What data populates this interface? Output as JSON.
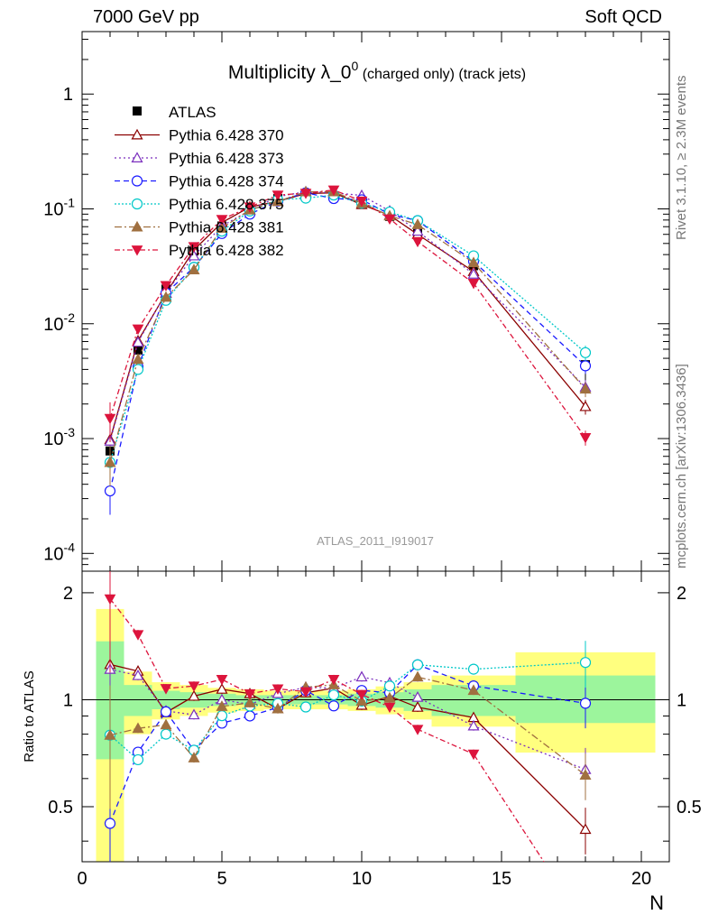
{
  "header": {
    "left": "7000 GeV pp",
    "right": "Soft QCD"
  },
  "side_text": {
    "rivet": "Rivet 3.1.10, ≥ 2.3M events",
    "mcplots": "mcplots.cern.ch [arXiv:1306.3436]"
  },
  "chart_data": {
    "type": "scatter",
    "title": "Multiplicity λ_0",
    "title_superscript": "0",
    "title_suffix": "(charged only) (track jets)",
    "analysis_label": "ATLAS_2011_I919017",
    "xlabel": "N",
    "ylabel_ratio": "Ratio to ATLAS",
    "xlim": [
      0,
      21
    ],
    "ylim_main": [
      7e-05,
      3.5
    ],
    "ylim_ratio": [
      0.35,
      2.3
    ],
    "yscale": "log",
    "x_ticks": [
      0,
      5,
      10,
      15,
      20
    ],
    "x_tick_labels": [
      "0",
      "5",
      "10",
      "15",
      "20"
    ],
    "y_ticks_main": [
      0.0001,
      0.001,
      0.01,
      0.1,
      1
    ],
    "y_tick_labels_main": [
      "10^-4",
      "10^-3",
      "10^-2",
      "10^-1",
      "1"
    ],
    "y_ticks_ratio": [
      0.5,
      1,
      2
    ],
    "y_tick_labels_ratio": [
      "0.5",
      "1",
      "2"
    ],
    "legend_position": "top-left",
    "x": [
      1,
      2,
      3,
      4,
      5,
      6,
      7,
      8,
      9,
      10,
      11,
      12,
      14,
      18
    ],
    "reference": {
      "name": "ATLAS",
      "color": "#000000",
      "values": [
        0.00078,
        0.0059,
        0.02,
        0.043,
        0.071,
        0.1,
        0.123,
        0.13,
        0.128,
        0.113,
        0.086,
        0.063,
        0.032,
        0.0044
      ],
      "band_stat": [
        [
          0.5,
          1.5,
          0.68,
          1.46
        ],
        [
          1.5,
          2.5,
          0.9,
          1.1
        ],
        [
          2.5,
          3.5,
          0.94,
          1.06
        ],
        [
          3.5,
          4.5,
          0.95,
          1.05
        ],
        [
          4.5,
          5.5,
          0.96,
          1.04
        ],
        [
          5.5,
          6.5,
          0.97,
          1.03
        ],
        [
          6.5,
          7.5,
          0.97,
          1.03
        ],
        [
          7.5,
          8.5,
          0.97,
          1.03
        ],
        [
          8.5,
          9.5,
          0.97,
          1.03
        ],
        [
          9.5,
          10.5,
          0.96,
          1.04
        ],
        [
          10.5,
          11.5,
          0.95,
          1.05
        ],
        [
          11.5,
          12.5,
          0.93,
          1.07
        ],
        [
          12.5,
          15.5,
          0.9,
          1.1
        ],
        [
          15.5,
          20.5,
          0.86,
          1.17
        ]
      ],
      "band_total": [
        [
          0.5,
          1.5,
          0.33,
          1.8
        ],
        [
          1.5,
          2.5,
          0.8,
          1.2
        ],
        [
          2.5,
          3.5,
          0.88,
          1.12
        ],
        [
          3.5,
          4.5,
          0.9,
          1.1
        ],
        [
          4.5,
          5.5,
          0.92,
          1.08
        ],
        [
          5.5,
          6.5,
          0.93,
          1.07
        ],
        [
          6.5,
          7.5,
          0.94,
          1.06
        ],
        [
          7.5,
          8.5,
          0.94,
          1.06
        ],
        [
          8.5,
          9.5,
          0.94,
          1.06
        ],
        [
          9.5,
          10.5,
          0.93,
          1.07
        ],
        [
          10.5,
          11.5,
          0.91,
          1.09
        ],
        [
          11.5,
          12.5,
          0.88,
          1.12
        ],
        [
          12.5,
          15.5,
          0.84,
          1.17
        ],
        [
          15.5,
          20.5,
          0.71,
          1.36
        ]
      ]
    },
    "series": [
      {
        "name": "Pythia 6.428 370",
        "color": "#8b0000",
        "marker": "triangle-open",
        "dash": "",
        "values": [
          0.00098,
          0.0071,
          0.0184,
          0.044,
          0.076,
          0.104,
          0.116,
          0.136,
          0.138,
          0.109,
          0.088,
          0.06,
          0.0285,
          0.0019
        ]
      },
      {
        "name": "Pythia 6.428 373",
        "color": "#7b2fbe",
        "marker": "triangle-open",
        "dash": "2,3",
        "values": [
          0.00095,
          0.0069,
          0.0186,
          0.039,
          0.071,
          0.097,
          0.128,
          0.141,
          0.138,
          0.131,
          0.096,
          0.064,
          0.027,
          0.0028
        ]
      },
      {
        "name": "Pythia 6.428 374",
        "color": "#1a1aff",
        "marker": "circle-open",
        "dash": "6,4",
        "values": [
          0.00035,
          0.0042,
          0.0185,
          0.031,
          0.061,
          0.09,
          0.117,
          0.138,
          0.123,
          0.12,
          0.09,
          0.079,
          0.035,
          0.0043
        ]
      },
      {
        "name": "Pythia 6.428 375",
        "color": "#00c8c8",
        "marker": "circle-open",
        "dash": "2,2",
        "values": [
          0.00062,
          0.004,
          0.016,
          0.031,
          0.064,
          0.096,
          0.12,
          0.124,
          0.132,
          0.112,
          0.094,
          0.079,
          0.039,
          0.0056
        ]
      },
      {
        "name": "Pythia 6.428 381",
        "color": "#a07040",
        "marker": "triangle-filled",
        "dash": "8,3,2,3",
        "values": [
          0.00062,
          0.0049,
          0.017,
          0.0295,
          0.068,
          0.098,
          0.116,
          0.141,
          0.141,
          0.112,
          0.087,
          0.073,
          0.034,
          0.0027
        ]
      },
      {
        "name": "Pythia 6.428 382",
        "color": "#dc143c",
        "marker": "triangle-down-filled",
        "dash": "6,3,2,3",
        "values": [
          0.0015,
          0.009,
          0.0215,
          0.047,
          0.081,
          0.104,
          0.132,
          0.137,
          0.146,
          0.117,
          0.082,
          0.052,
          0.0225,
          0.00102
        ]
      }
    ]
  }
}
